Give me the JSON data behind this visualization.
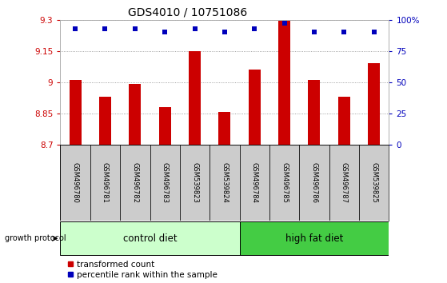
{
  "title": "GDS4010 / 10751086",
  "samples": [
    "GSM496780",
    "GSM496781",
    "GSM496782",
    "GSM496783",
    "GSM539823",
    "GSM539824",
    "GSM496784",
    "GSM496785",
    "GSM496786",
    "GSM496787",
    "GSM539825"
  ],
  "bar_values": [
    9.01,
    8.93,
    8.99,
    8.88,
    9.15,
    8.855,
    9.06,
    9.295,
    9.01,
    8.93,
    9.09
  ],
  "percentile_values": [
    93,
    93,
    93,
    90,
    93,
    90,
    93,
    97,
    90,
    90,
    90
  ],
  "ylim": [
    8.7,
    9.3
  ],
  "yticks": [
    8.7,
    8.85,
    9.0,
    9.15,
    9.3
  ],
  "ytick_labels": [
    "8.7",
    "8.85",
    "9",
    "9.15",
    "9.3"
  ],
  "right_yticks": [
    0,
    25,
    50,
    75,
    100
  ],
  "right_ytick_labels": [
    "0",
    "25",
    "50",
    "75",
    "100%"
  ],
  "bar_color": "#cc0000",
  "dot_color": "#0000bb",
  "control_diet_indices": [
    0,
    1,
    2,
    3,
    4,
    5
  ],
  "high_fat_diet_indices": [
    6,
    7,
    8,
    9,
    10
  ],
  "control_label": "control diet",
  "high_fat_label": "high fat diet",
  "protocol_label": "growth protocol",
  "legend_bar_label": "transformed count",
  "legend_dot_label": "percentile rank within the sample",
  "grid_color": "#888888",
  "bg_color": "#ffffff",
  "plot_bg": "#ffffff",
  "tick_label_color_left": "#cc0000",
  "tick_label_color_right": "#0000bb",
  "control_bg": "#ccffcc",
  "high_fat_bg": "#44cc44",
  "sample_bg": "#cccccc",
  "bar_width": 0.4
}
